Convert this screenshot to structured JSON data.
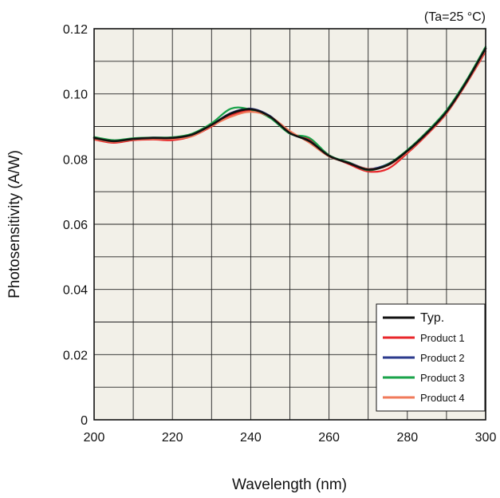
{
  "chart_data": {
    "type": "line",
    "condition_note": "(Ta=25 °C)",
    "xlabel": "Wavelength (nm)",
    "ylabel": "Photosensitivity (A/W)",
    "xlim": [
      200,
      300
    ],
    "ylim": [
      0,
      0.12
    ],
    "x_ticks": [
      200,
      220,
      240,
      260,
      280,
      300
    ],
    "x_tick_labels": [
      "200",
      "220",
      "240",
      "260",
      "280",
      "300"
    ],
    "y_ticks": [
      0,
      0.02,
      0.04,
      0.06,
      0.08,
      0.1,
      0.12
    ],
    "y_tick_labels": [
      "0",
      "0.02",
      "0.04",
      "0.06",
      "0.08",
      "0.10",
      "0.12"
    ],
    "grid": true,
    "background_color": "#f2f0e8",
    "legend_position": "bottom-right",
    "series": [
      {
        "name": "Typ.",
        "color": "#111111",
        "x": [
          200,
          205,
          210,
          215,
          220,
          225,
          230,
          235,
          240,
          245,
          250,
          255,
          260,
          265,
          270,
          275,
          280,
          285,
          290,
          295,
          300
        ],
        "values": [
          0.0865,
          0.0855,
          0.0862,
          0.0865,
          0.0865,
          0.0875,
          0.0905,
          0.094,
          0.0953,
          0.093,
          0.088,
          0.0855,
          0.081,
          0.0788,
          0.0768,
          0.0782,
          0.0825,
          0.088,
          0.0945,
          0.1035,
          0.114
        ]
      },
      {
        "name": "Product 1",
        "color": "#e8262a",
        "x": [
          200,
          205,
          210,
          215,
          220,
          225,
          230,
          235,
          240,
          245,
          250,
          255,
          260,
          265,
          270,
          275,
          280,
          285,
          290,
          295,
          300
        ],
        "values": [
          0.086,
          0.085,
          0.0858,
          0.086,
          0.0858,
          0.087,
          0.09,
          0.0935,
          0.0948,
          0.0928,
          0.088,
          0.086,
          0.0812,
          0.0785,
          0.0762,
          0.077,
          0.0818,
          0.0875,
          0.094,
          0.103,
          0.113
        ]
      },
      {
        "name": "Product 2",
        "color": "#2b3a8c",
        "x": [
          200,
          205,
          210,
          215,
          220,
          225,
          230,
          235,
          240,
          245,
          250,
          255,
          260,
          265,
          270,
          275,
          280,
          285,
          290,
          295,
          300
        ],
        "values": [
          0.0865,
          0.0857,
          0.0863,
          0.0866,
          0.0866,
          0.0876,
          0.0906,
          0.0942,
          0.0955,
          0.0932,
          0.088,
          0.0856,
          0.081,
          0.079,
          0.077,
          0.0785,
          0.0826,
          0.0882,
          0.0947,
          0.1036,
          0.1138
        ]
      },
      {
        "name": "Product 3",
        "color": "#1aa34a",
        "x": [
          200,
          205,
          210,
          215,
          220,
          225,
          230,
          235,
          240,
          245,
          250,
          255,
          260,
          265,
          270,
          275,
          280,
          285,
          290,
          295,
          300
        ],
        "values": [
          0.0868,
          0.0858,
          0.0864,
          0.0866,
          0.0867,
          0.0878,
          0.091,
          0.0955,
          0.0952,
          0.0926,
          0.0878,
          0.0865,
          0.0812,
          0.079,
          0.0766,
          0.0784,
          0.0828,
          0.0884,
          0.095,
          0.104,
          0.1145
        ]
      },
      {
        "name": "Product 4",
        "color": "#f07a5a",
        "x": [
          200,
          205,
          210,
          215,
          220,
          225,
          230,
          235,
          240,
          245,
          250,
          255,
          260,
          265,
          270,
          275,
          280,
          285,
          290,
          295,
          300
        ],
        "values": [
          0.0862,
          0.0853,
          0.086,
          0.0862,
          0.0862,
          0.087,
          0.0902,
          0.093,
          0.0945,
          0.093,
          0.0886,
          0.085,
          0.0808,
          0.0788,
          0.077,
          0.078,
          0.0822,
          0.0878,
          0.0942,
          0.1032,
          0.1135
        ]
      }
    ]
  }
}
